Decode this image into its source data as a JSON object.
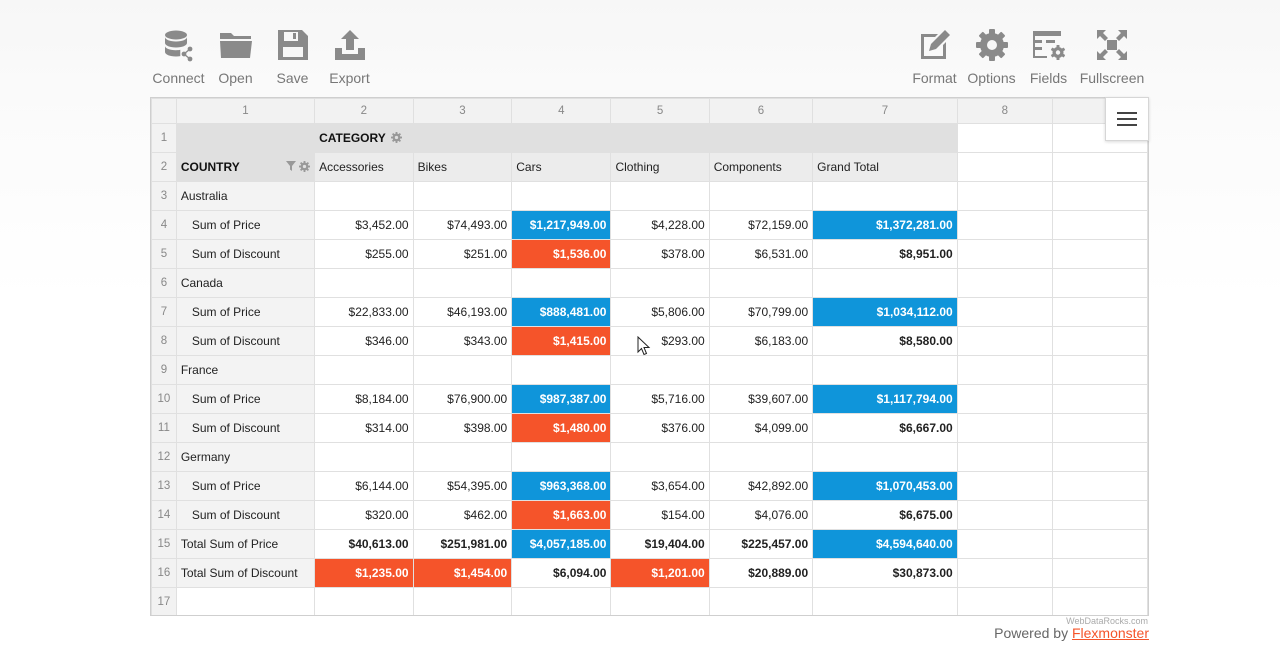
{
  "toolbar": {
    "connect": "Connect",
    "open": "Open",
    "save": "Save",
    "export": "Export",
    "format": "Format",
    "options": "Options",
    "fields": "Fields",
    "fullscreen": "Fullscreen"
  },
  "grid": {
    "col_numbers": [
      "1",
      "2",
      "3",
      "4",
      "5",
      "6",
      "7",
      "8"
    ],
    "row_numbers": [
      "1",
      "2",
      "3",
      "4",
      "5",
      "6",
      "7",
      "8",
      "9",
      "10",
      "11",
      "12",
      "13",
      "14",
      "15",
      "16",
      "17"
    ],
    "category_label": "CATEGORY",
    "country_label": "COUNTRY",
    "categories": [
      "Accessories",
      "Bikes",
      "Cars",
      "Clothing",
      "Components",
      "Grand Total"
    ],
    "rows": [
      {
        "label": "Australia",
        "values": [
          "",
          "",
          "",
          "",
          "",
          ""
        ]
      },
      {
        "label": "Sum of Price",
        "values": [
          "$3,452.00",
          "$74,493.00",
          "$1,217,949.00",
          "$4,228.00",
          "$72,159.00",
          "$1,372,281.00"
        ]
      },
      {
        "label": "Sum of Discount",
        "values": [
          "$255.00",
          "$251.00",
          "$1,536.00",
          "$378.00",
          "$6,531.00",
          "$8,951.00"
        ]
      },
      {
        "label": "Canada",
        "values": [
          "",
          "",
          "",
          "",
          "",
          ""
        ]
      },
      {
        "label": "Sum of Price",
        "values": [
          "$22,833.00",
          "$46,193.00",
          "$888,481.00",
          "$5,806.00",
          "$70,799.00",
          "$1,034,112.00"
        ]
      },
      {
        "label": "Sum of Discount",
        "values": [
          "$346.00",
          "$343.00",
          "$1,415.00",
          "$293.00",
          "$6,183.00",
          "$8,580.00"
        ]
      },
      {
        "label": "France",
        "values": [
          "",
          "",
          "",
          "",
          "",
          ""
        ]
      },
      {
        "label": "Sum of Price",
        "values": [
          "$8,184.00",
          "$76,900.00",
          "$987,387.00",
          "$5,716.00",
          "$39,607.00",
          "$1,117,794.00"
        ]
      },
      {
        "label": "Sum of Discount",
        "values": [
          "$314.00",
          "$398.00",
          "$1,480.00",
          "$376.00",
          "$4,099.00",
          "$6,667.00"
        ]
      },
      {
        "label": "Germany",
        "values": [
          "",
          "",
          "",
          "",
          "",
          ""
        ]
      },
      {
        "label": "Sum of Price",
        "values": [
          "$6,144.00",
          "$54,395.00",
          "$963,368.00",
          "$3,654.00",
          "$42,892.00",
          "$1,070,453.00"
        ]
      },
      {
        "label": "Sum of Discount",
        "values": [
          "$320.00",
          "$462.00",
          "$1,663.00",
          "$154.00",
          "$4,076.00",
          "$6,675.00"
        ]
      },
      {
        "label": "Total Sum of Price",
        "values": [
          "$40,613.00",
          "$251,981.00",
          "$4,057,185.00",
          "$19,404.00",
          "$225,457.00",
          "$4,594,640.00"
        ]
      },
      {
        "label": "Total Sum of Discount",
        "values": [
          "$1,235.00",
          "$1,454.00",
          "$6,094.00",
          "$1,201.00",
          "$20,889.00",
          "$30,873.00"
        ]
      }
    ]
  },
  "colors": {
    "highlight_blue": "#0f95da",
    "highlight_orange": "#f5542a"
  },
  "footer": {
    "watermark": "WebDataRocks.com",
    "powered_by": "Powered by",
    "link": "Flexmonster"
  }
}
